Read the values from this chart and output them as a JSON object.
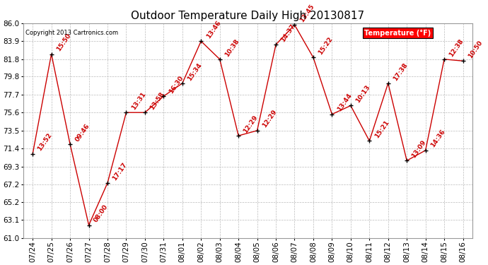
{
  "title": "Outdoor Temperature Daily High 20130817",
  "copyright": "Copyright 2013 Cartronics.com",
  "legend_label": "Temperature (°F)",
  "dates": [
    "07/24",
    "07/25",
    "07/26",
    "07/27",
    "07/28",
    "07/29",
    "07/30",
    "07/31",
    "08/01",
    "08/02",
    "08/03",
    "08/04",
    "08/05",
    "08/06",
    "08/07",
    "08/08",
    "08/09",
    "08/10",
    "08/11",
    "08/12",
    "08/13",
    "08/14",
    "08/15",
    "08/16"
  ],
  "temps": [
    70.8,
    82.4,
    71.9,
    62.5,
    67.4,
    75.6,
    75.6,
    77.5,
    79.0,
    83.9,
    81.8,
    72.9,
    73.5,
    83.5,
    85.8,
    82.0,
    75.4,
    76.4,
    72.3,
    79.0,
    70.0,
    71.2,
    81.8,
    81.6
  ],
  "point_labels": [
    "13:52",
    "15:50",
    "09:46",
    "08:00",
    "17:17",
    "13:31",
    "13:58",
    "16:30",
    "15:34",
    "13:46",
    "10:38",
    "12:29",
    "12:29",
    "14:37",
    "13:45",
    "15:22",
    "13:44",
    "10:13",
    "15:21",
    "17:38",
    "13:09",
    "14:36",
    "12:38",
    "10:50"
  ],
  "ylim": [
    61.0,
    86.0
  ],
  "yticks": [
    61.0,
    63.1,
    65.2,
    67.2,
    69.3,
    71.4,
    73.5,
    75.6,
    77.7,
    79.8,
    81.8,
    83.9,
    86.0
  ],
  "line_color": "#cc0000",
  "marker_color": "#000000",
  "bg_color": "#ffffff",
  "grid_color": "#bbbbbb",
  "label_color": "#cc0000",
  "title_fontsize": 11,
  "label_fontsize": 6.5,
  "tick_fontsize": 7.5
}
